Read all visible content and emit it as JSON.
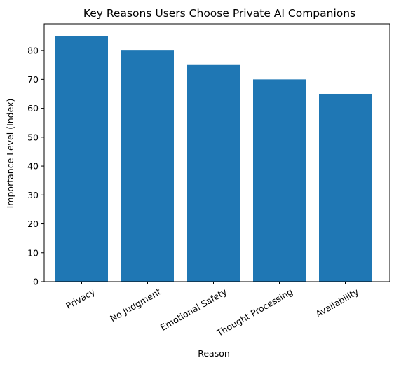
{
  "chart_data": {
    "type": "bar",
    "title": "Key Reasons Users Choose Private AI Companions",
    "xlabel": "Reason",
    "ylabel": "Importance Level (Index)",
    "categories": [
      "Privacy",
      "No Judgment",
      "Emotional Safety",
      "Thought Processing",
      "Availability"
    ],
    "values": [
      85,
      80,
      75,
      70,
      65
    ],
    "ylim": [
      0,
      89.25
    ],
    "yticks": [
      0,
      10,
      20,
      30,
      40,
      50,
      60,
      70,
      80
    ],
    "bar_color": "#1f77b4",
    "grid": false,
    "legend": "none"
  }
}
